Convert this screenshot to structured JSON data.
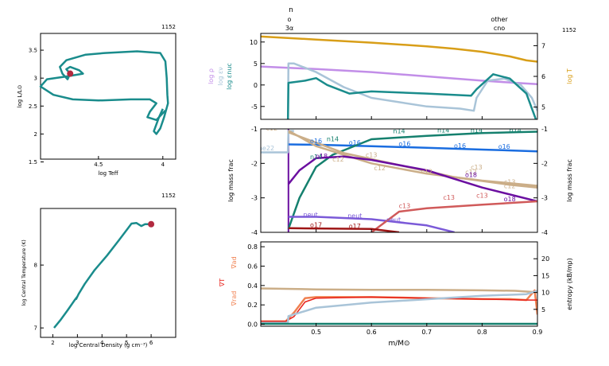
{
  "colors": {
    "teal": "#1a8c8c",
    "crimson": "#b22a40",
    "lavender": "#c28ee8",
    "lightblue": "#a9c4d8",
    "mustard": "#d89e18",
    "tan": "#cbae88",
    "purple": "#6b0fa0",
    "blue": "#1a6de0",
    "darkgreen": "#15806e",
    "darkred": "#9e1515",
    "violet": "#7b5ad8",
    "rose": "#d05a5a",
    "orange": "#f08050",
    "red": "#e8201a",
    "gray": "#999999"
  },
  "header": {
    "model_number": "1152",
    "top_label": "n",
    "marker_left_1": "o",
    "marker_left_2": "3α",
    "marker_right_1": "other",
    "marker_right_2": "cno"
  },
  "chart_data": [
    {
      "id": "hr",
      "type": "line",
      "title": "1152",
      "xlabel": "log Teff",
      "ylabel": "log L/L⊙",
      "xlim": [
        4.95,
        3.9
      ],
      "ylim": [
        1.55,
        3.8
      ],
      "xticks": [
        "4.5",
        "4"
      ],
      "yticks": [
        "1.5",
        "2",
        "2.5",
        "3",
        "3.5"
      ],
      "track": [
        [
          4.0,
          2.45
        ],
        [
          4.03,
          2.3
        ],
        [
          4.07,
          2.05
        ],
        [
          4.05,
          2.0
        ],
        [
          4.02,
          2.1
        ],
        [
          3.99,
          2.3
        ],
        [
          3.96,
          2.55
        ],
        [
          3.965,
          2.7
        ],
        [
          3.97,
          3.0
        ],
        [
          3.98,
          3.3
        ],
        [
          4.02,
          3.45
        ],
        [
          4.2,
          3.48
        ],
        [
          4.45,
          3.45
        ],
        [
          4.6,
          3.42
        ],
        [
          4.75,
          3.32
        ],
        [
          4.8,
          3.2
        ],
        [
          4.78,
          3.08
        ],
        [
          4.74,
          2.98
        ],
        [
          4.72,
          3.08
        ],
        [
          4.75,
          3.16
        ],
        [
          4.72,
          3.2
        ],
        [
          4.65,
          3.14
        ],
        [
          4.62,
          3.08
        ],
        [
          4.75,
          3.03
        ],
        [
          4.9,
          2.98
        ],
        [
          4.95,
          2.85
        ],
        [
          4.85,
          2.7
        ],
        [
          4.7,
          2.62
        ],
        [
          4.5,
          2.6
        ],
        [
          4.25,
          2.62
        ],
        [
          4.1,
          2.62
        ],
        [
          4.05,
          2.55
        ],
        [
          4.1,
          2.4
        ],
        [
          4.12,
          2.3
        ],
        [
          4.05,
          2.25
        ],
        [
          3.98,
          2.42
        ]
      ],
      "current": [
        4.72,
        3.08
      ]
    },
    {
      "id": "central",
      "type": "line",
      "title": "1152",
      "xlabel": "log Central Density (g cm⁻³)",
      "ylabel": "log Central Temperature (K)",
      "xlim": [
        1.5,
        7.0
      ],
      "ylim": [
        6.85,
        8.9
      ],
      "xticks": [
        "2",
        "3",
        "4",
        "5",
        "6"
      ],
      "yticks": [
        "7",
        "8"
      ],
      "track": [
        [
          2.05,
          7.0
        ],
        [
          2.3,
          7.12
        ],
        [
          2.6,
          7.28
        ],
        [
          2.9,
          7.45
        ],
        [
          3.0,
          7.5
        ],
        [
          2.95,
          7.46
        ],
        [
          3.05,
          7.54
        ],
        [
          3.3,
          7.7
        ],
        [
          3.7,
          7.92
        ],
        [
          4.2,
          8.15
        ],
        [
          4.7,
          8.4
        ],
        [
          5.05,
          8.58
        ],
        [
          5.2,
          8.66
        ],
        [
          5.4,
          8.67
        ],
        [
          5.6,
          8.62
        ],
        [
          5.75,
          8.65
        ],
        [
          6.0,
          8.65
        ]
      ],
      "current": [
        6.0,
        8.65
      ]
    },
    {
      "id": "profile_top",
      "type": "line",
      "xlim": [
        0.4,
        0.9
      ],
      "ylim_left": [
        -8,
        12
      ],
      "ylim_right": [
        4.6,
        7.4
      ],
      "yticks_left": [
        "-5",
        "0",
        "5",
        "10"
      ],
      "yticks_right": [
        "5",
        "6",
        "7"
      ],
      "ylabels_left": [
        "log ρ",
        "log εν",
        "log εnuc"
      ],
      "ylabel_right": "log T",
      "series": [
        {
          "name": "log ρ",
          "color": "lavender",
          "points": [
            [
              0.4,
              4.3
            ],
            [
              0.45,
              4.0
            ],
            [
              0.5,
              3.7
            ],
            [
              0.6,
              3.0
            ],
            [
              0.7,
              2.0
            ],
            [
              0.8,
              1.0
            ],
            [
              0.86,
              0.5
            ],
            [
              0.9,
              0.2
            ]
          ]
        },
        {
          "name": "log εν",
          "color": "lightblue",
          "points": [
            [
              0.4,
              -9.5
            ],
            [
              0.449,
              -9.5
            ],
            [
              0.45,
              5.0
            ],
            [
              0.46,
              5.0
            ],
            [
              0.5,
              3.0
            ],
            [
              0.55,
              -0.5
            ],
            [
              0.6,
              -3.0
            ],
            [
              0.7,
              -5.0
            ],
            [
              0.76,
              -5.5
            ],
            [
              0.785,
              -6.0
            ],
            [
              0.79,
              -3.0
            ],
            [
              0.81,
              1.0
            ],
            [
              0.84,
              1.5
            ],
            [
              0.87,
              0.0
            ],
            [
              0.89,
              -3.0
            ],
            [
              0.9,
              -6.0
            ]
          ]
        },
        {
          "name": "log εnuc",
          "color": "teal",
          "points": [
            [
              0.4,
              -9.5
            ],
            [
              0.449,
              -9.5
            ],
            [
              0.45,
              0.5
            ],
            [
              0.48,
              1.0
            ],
            [
              0.5,
              1.6
            ],
            [
              0.52,
              0.0
            ],
            [
              0.56,
              -2.0
            ],
            [
              0.6,
              -1.5
            ],
            [
              0.7,
              -2.0
            ],
            [
              0.78,
              -2.5
            ],
            [
              0.79,
              -1.0
            ],
            [
              0.82,
              2.5
            ],
            [
              0.85,
              1.5
            ],
            [
              0.88,
              -2.0
            ],
            [
              0.9,
              -9.0
            ]
          ]
        },
        {
          "name": "log T",
          "color": "mustard",
          "axis": "right",
          "points": [
            [
              0.4,
              7.3
            ],
            [
              0.5,
              7.2
            ],
            [
              0.6,
              7.1
            ],
            [
              0.7,
              6.98
            ],
            [
              0.75,
              6.9
            ],
            [
              0.8,
              6.8
            ],
            [
              0.85,
              6.65
            ],
            [
              0.88,
              6.52
            ],
            [
              0.9,
              6.48
            ]
          ]
        }
      ]
    },
    {
      "id": "abundance",
      "type": "line",
      "xlim": [
        0.4,
        0.9
      ],
      "ylim": [
        -4,
        -1
      ],
      "yticks": [
        "-1",
        "-2",
        "-3",
        "-4"
      ],
      "ylabel_left": "log mass frac",
      "ylabel_right": "log mass frac",
      "series": [
        {
          "name": "ne22",
          "color": "lightblue",
          "points": [
            [
              0.4,
              -1.68
            ],
            [
              0.449,
              -1.68
            ],
            [
              0.45,
              -1.06
            ],
            [
              0.46,
              -1.06
            ]
          ],
          "labels": [
            [
              0.41,
              -1.62
            ]
          ]
        },
        {
          "name": "o16",
          "color": "blue",
          "points": [
            [
              0.45,
              -1.45
            ],
            [
              0.5,
              -1.46
            ],
            [
              0.6,
              -1.5
            ],
            [
              0.7,
              -1.55
            ],
            [
              0.8,
              -1.6
            ],
            [
              0.9,
              -1.65
            ]
          ],
          "labels": [
            [
              0.5,
              -1.42
            ],
            [
              0.57,
              -1.46
            ],
            [
              0.66,
              -1.5
            ],
            [
              0.76,
              -1.55
            ],
            [
              0.84,
              -1.58
            ]
          ]
        },
        {
          "name": "n14",
          "color": "darkgreen",
          "points": [
            [
              0.45,
              -3.9
            ],
            [
              0.47,
              -3.0
            ],
            [
              0.5,
              -2.1
            ],
            [
              0.53,
              -1.75
            ],
            [
              0.6,
              -1.3
            ],
            [
              0.7,
              -1.2
            ],
            [
              0.8,
              -1.12
            ],
            [
              0.9,
              -1.08
            ]
          ],
          "labels": [
            [
              0.5,
              -1.88
            ],
            [
              0.53,
              -1.36
            ],
            [
              0.65,
              -1.13
            ],
            [
              0.73,
              -1.1
            ],
            [
              0.79,
              -1.1
            ],
            [
              0.86,
              -1.1
            ]
          ]
        },
        {
          "name": "c12",
          "color": "tan",
          "points": [
            [
              0.45,
              -1.05
            ],
            [
              0.5,
              -1.5
            ],
            [
              0.6,
              -2.0
            ],
            [
              0.7,
              -2.3
            ],
            [
              0.8,
              -2.5
            ],
            [
              0.9,
              -2.65
            ]
          ],
          "labels": [
            [
              0.42,
              -1.05
            ],
            [
              0.54,
              -1.95
            ],
            [
              0.615,
              -2.2
            ],
            [
              0.7,
              -2.3
            ],
            [
              0.78,
              -2.32
            ],
            [
              0.85,
              -2.72
            ]
          ]
        },
        {
          "name": "c13",
          "color": "tan",
          "points": [
            [
              0.45,
              -1.1
            ],
            [
              0.55,
              -1.7
            ],
            [
              0.65,
              -2.05
            ],
            [
              0.75,
              -2.4
            ],
            [
              0.85,
              -2.62
            ],
            [
              0.9,
              -2.7
            ]
          ],
          "labels": [
            [
              0.6,
              -1.82
            ],
            [
              0.79,
              -2.18
            ],
            [
              0.85,
              -2.6
            ]
          ]
        },
        {
          "name": "o18",
          "color": "purple",
          "points": [
            [
              0.45,
              -2.6
            ],
            [
              0.47,
              -2.2
            ],
            [
              0.5,
              -1.85
            ],
            [
              0.55,
              -1.8
            ],
            [
              0.6,
              -1.9
            ],
            [
              0.7,
              -2.2
            ],
            [
              0.8,
              -2.7
            ],
            [
              0.9,
              -3.1
            ]
          ],
          "labels": [
            [
              0.51,
              -1.85
            ],
            [
              0.78,
              -2.4
            ],
            [
              0.85,
              -3.1
            ]
          ]
        },
        {
          "name": "neut",
          "color": "violet",
          "points": [
            [
              0.45,
              -3.55
            ],
            [
              0.5,
              -3.55
            ],
            [
              0.6,
              -3.62
            ],
            [
              0.7,
              -3.8
            ],
            [
              0.75,
              -4.0
            ]
          ],
          "labels": [
            [
              0.49,
              -3.55
            ],
            [
              0.57,
              -3.58
            ],
            [
              0.64,
              -3.7
            ]
          ]
        },
        {
          "name": "c13",
          "color": "rose",
          "points": [
            [
              0.6,
              -4.0
            ],
            [
              0.65,
              -3.4
            ],
            [
              0.7,
              -3.3
            ],
            [
              0.8,
              -3.2
            ],
            [
              0.9,
              -3.1
            ]
          ],
          "labels": [
            [
              0.66,
              -3.3
            ],
            [
              0.74,
              -3.05
            ],
            [
              0.8,
              -3.0
            ]
          ]
        },
        {
          "name": "o17",
          "color": "darkred",
          "points": [
            [
              0.45,
              -3.88
            ],
            [
              0.6,
              -3.9
            ],
            [
              0.65,
              -4.0
            ]
          ],
          "labels": [
            [
              0.5,
              -3.85
            ],
            [
              0.57,
              -3.88
            ]
          ]
        }
      ]
    },
    {
      "id": "gradients",
      "type": "line",
      "xlim": [
        0.4,
        0.9
      ],
      "ylim": [
        -0.02,
        0.85
      ],
      "ylim_right": [
        0,
        25
      ],
      "xticks": [
        "0.5",
        "0.6",
        "0.7",
        "0.8",
        "0.9"
      ],
      "yticks": [
        "0.0",
        "0.2",
        "0.4",
        "0.6",
        "0.8"
      ],
      "yticks_right": [
        "5",
        "10",
        "15",
        "20"
      ],
      "xlabel": "m/M⊙",
      "ylabels_left": [
        "∇ad",
        "∇T",
        "∇rad"
      ],
      "ylabel_right": "entropy (kB/mp)",
      "series": [
        {
          "name": "∇ad",
          "color": "tan",
          "points": [
            [
              0.4,
              0.37
            ],
            [
              0.5,
              0.36
            ],
            [
              0.6,
              0.355
            ],
            [
              0.7,
              0.355
            ],
            [
              0.8,
              0.35
            ],
            [
              0.86,
              0.345
            ],
            [
              0.9,
              0.33
            ]
          ]
        },
        {
          "name": "∇rad",
          "color": "orange",
          "points": [
            [
              0.4,
              0.03
            ],
            [
              0.445,
              0.03
            ],
            [
              0.46,
              0.12
            ],
            [
              0.48,
              0.27
            ],
            [
              0.5,
              0.28
            ],
            [
              0.6,
              0.28
            ],
            [
              0.7,
              0.27
            ],
            [
              0.8,
              0.26
            ],
            [
              0.85,
              0.26
            ],
            [
              0.88,
              0.25
            ],
            [
              0.895,
              0.35
            ],
            [
              0.9,
              0.1
            ]
          ]
        },
        {
          "name": "∇T",
          "color": "red",
          "points": [
            [
              0.4,
              0.03
            ],
            [
              0.445,
              0.03
            ],
            [
              0.46,
              0.08
            ],
            [
              0.48,
              0.23
            ],
            [
              0.5,
              0.27
            ],
            [
              0.6,
              0.28
            ],
            [
              0.7,
              0.27
            ],
            [
              0.8,
              0.26
            ],
            [
              0.88,
              0.25
            ],
            [
              0.9,
              0.25
            ]
          ]
        },
        {
          "name": "entropy",
          "color": "lightblue",
          "axis": "right",
          "points": [
            [
              0.4,
              1.0
            ],
            [
              0.449,
              1.0
            ],
            [
              0.45,
              3.0
            ],
            [
              0.5,
              5.5
            ],
            [
              0.6,
              7.0
            ],
            [
              0.7,
              8.0
            ],
            [
              0.8,
              9.0
            ],
            [
              0.88,
              9.5
            ],
            [
              0.9,
              10.5
            ]
          ]
        },
        {
          "name": "",
          "color": "darkgreen",
          "points": [
            [
              0.4,
              0.005
            ],
            [
              0.9,
              0.005
            ]
          ]
        }
      ]
    }
  ]
}
